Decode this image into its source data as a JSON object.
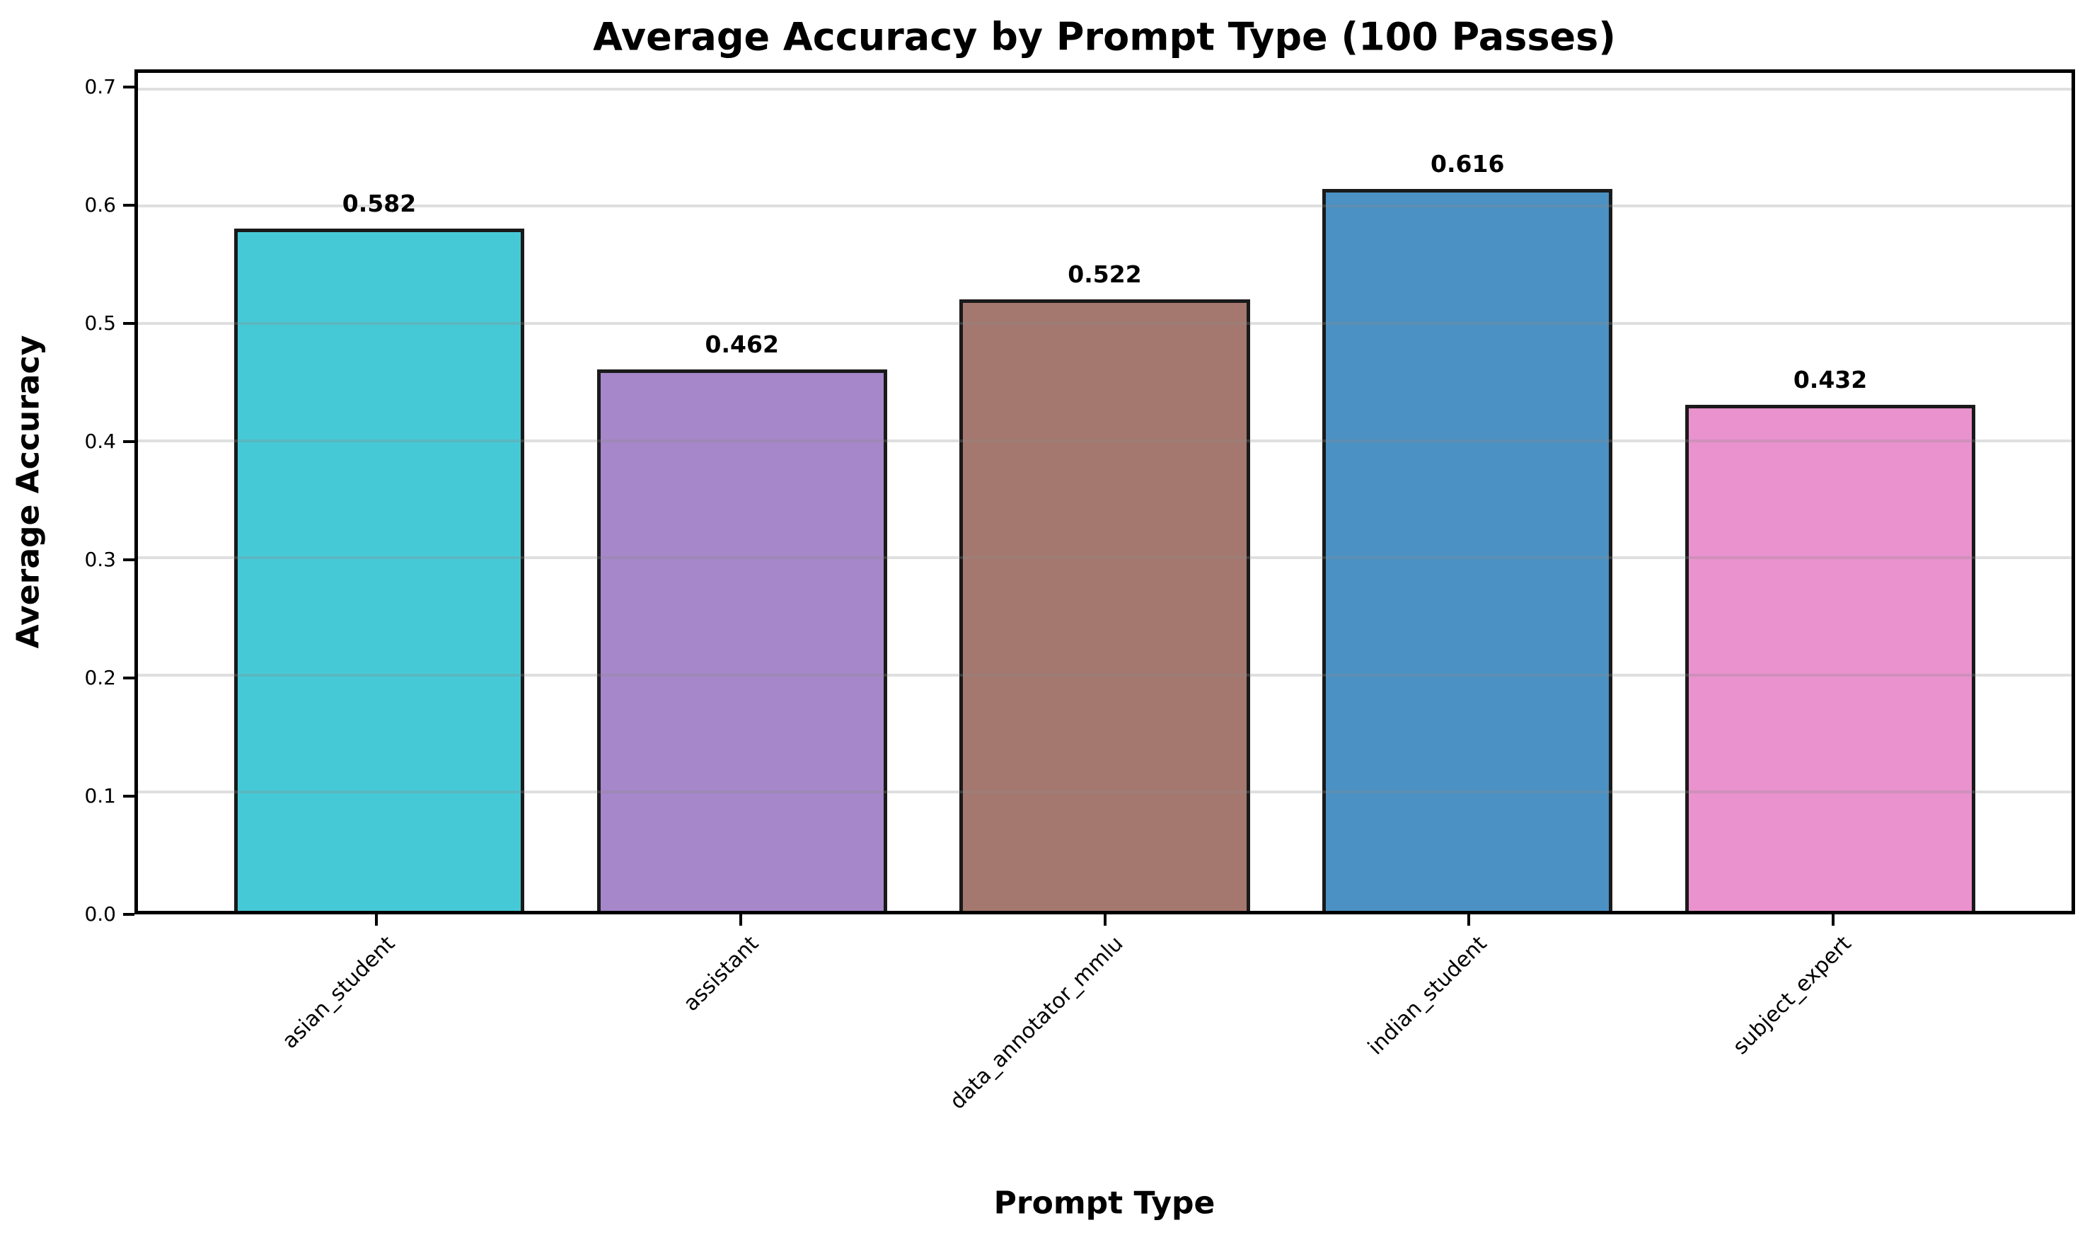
{
  "chart_data": {
    "type": "bar",
    "title": "Average Accuracy by Prompt Type (100 Passes)",
    "xlabel": "Prompt Type",
    "ylabel": "Average Accuracy",
    "categories": [
      "asian_student",
      "assistant",
      "data_annotator_mmlu",
      "indian_student",
      "subject_expert"
    ],
    "values": [
      0.582,
      0.462,
      0.522,
      0.616,
      0.432
    ],
    "value_labels": [
      "0.582",
      "0.462",
      "0.522",
      "0.616",
      "0.432"
    ],
    "bar_colors": [
      "#46C9D6",
      "#A687C9",
      "#A4786E",
      "#4B91C3",
      "#E992CD"
    ],
    "bar_edge_color": "#1a1a1a",
    "yticks": [
      0.0,
      0.1,
      0.2,
      0.3,
      0.4,
      0.5,
      0.6,
      0.7
    ],
    "ytick_labels": [
      "0.0",
      "0.1",
      "0.2",
      "0.3",
      "0.4",
      "0.5",
      "0.6",
      "0.7"
    ],
    "ylim": [
      0,
      0.715
    ],
    "xlim": [
      -0.665,
      4.665
    ],
    "bar_width": 0.8,
    "grid": "horizontal",
    "gridline_color": "#d9d9d9",
    "legend": "none"
  }
}
